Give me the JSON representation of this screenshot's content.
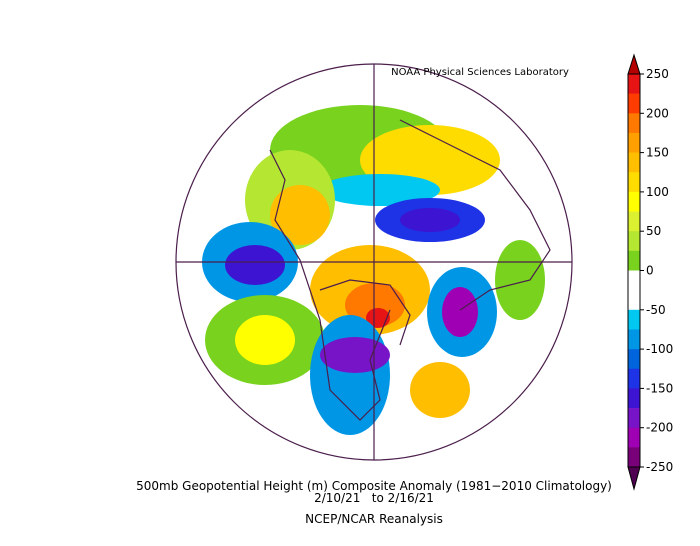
{
  "header": {
    "source": "NOAA Physical Sciences Laboratory"
  },
  "footer": {
    "title": "500mb Geopotential Height (m) Composite Anomaly (1981−2010 Climatology)",
    "dates": "2/10/21   to 2/16/21",
    "dataset": "NCEP/NCAR Reanalysis"
  },
  "colorbar": {
    "ticks": [
      250,
      200,
      150,
      100,
      50,
      0,
      -50,
      -100,
      -150,
      -200,
      -250
    ],
    "over_color": "#b40000",
    "under_color": "#500050",
    "colors": [
      "#e61414",
      "#ff3c00",
      "#ff7800",
      "#ffa000",
      "#ffbe00",
      "#ffdc00",
      "#ffff00",
      "#dcf032",
      "#b4e632",
      "#78d21e",
      "#ffffff",
      "#ffffff",
      "#00c8f0",
      "#0096e6",
      "#0064dc",
      "#1e32e6",
      "#3c14d2",
      "#7814c8",
      "#a000b4",
      "#780078"
    ]
  }
}
